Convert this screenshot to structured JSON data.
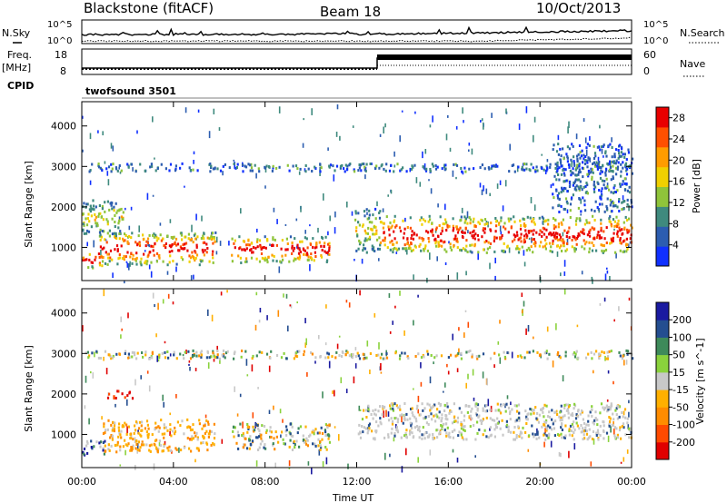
{
  "header": {
    "station": "Blackstone (fitACF)",
    "beam": "Beam 18",
    "date": "10/Oct/2013"
  },
  "noise_panel": {
    "left_label": "N.Sky",
    "right_label": "N.Search",
    "left_ticks": [
      "10^5",
      "10^0"
    ],
    "right_ticks": [
      "10^5",
      "10^0"
    ]
  },
  "freq_panel": {
    "left_label_1": "Freq.",
    "left_label_2": "[MHz]",
    "right_label": "Nave",
    "left_ticks": [
      "18",
      "8"
    ],
    "right_ticks": [
      "60",
      "0"
    ],
    "cpid_label": "CPID",
    "cpid_value": "twofsound 3501"
  },
  "x_axis": {
    "label": "Time UT",
    "ticks": [
      "00:00",
      "04:00",
      "08:00",
      "12:00",
      "16:00",
      "20:00",
      "00:00"
    ]
  },
  "chart_data": [
    {
      "type": "heatmap",
      "name": "power",
      "ylabel": "Slant Range [km]",
      "yticks": [
        1000,
        2000,
        3000,
        4000
      ],
      "ylim": [
        180,
        4600
      ],
      "xlim_hours": [
        0,
        24
      ],
      "colorbar": {
        "label": "Power [dB]",
        "ticks": [
          "28",
          "24",
          "20",
          "16",
          "12",
          "8",
          "4"
        ],
        "range": [
          0,
          30
        ],
        "colors": [
          "#1030ff",
          "#2c5db0",
          "#3f8a7e",
          "#8fc43a",
          "#f0d000",
          "#ff9c00",
          "#ff5000",
          "#e80000"
        ]
      },
      "echo_regions": [
        {
          "t": [
            0.0,
            0.9
          ],
          "r": [
            520,
            900
          ],
          "level": "high"
        },
        {
          "t": [
            0.7,
            5.8
          ],
          "r": [
            600,
            1400
          ],
          "level": "high"
        },
        {
          "t": [
            0.0,
            1.8
          ],
          "r": [
            1300,
            2200
          ],
          "level": "mid"
        },
        {
          "t": [
            6.5,
            10.8
          ],
          "r": [
            650,
            1300
          ],
          "level": "high"
        },
        {
          "t": [
            11.9,
            13.0
          ],
          "r": [
            900,
            2000
          ],
          "level": "mid"
        },
        {
          "t": [
            13.0,
            24.0
          ],
          "r": [
            900,
            1800
          ],
          "level": "high"
        },
        {
          "t": [
            0.0,
            24.0
          ],
          "r": [
            2900,
            3100
          ],
          "level": "low"
        },
        {
          "t": [
            20.5,
            24.0
          ],
          "r": [
            1900,
            3600
          ],
          "level": "low"
        }
      ]
    },
    {
      "type": "heatmap",
      "name": "velocity",
      "ylabel": "Slant Range [km]",
      "yticks": [
        1000,
        2000,
        3000,
        4000
      ],
      "ylim": [
        180,
        4600
      ],
      "xlim_hours": [
        0,
        24
      ],
      "colorbar": {
        "label": "Velocity [m s^-1]",
        "ticks": [
          "200",
          "100",
          "50",
          "15",
          "-15",
          "-50",
          "-100",
          "-200"
        ],
        "range": [
          -250,
          250
        ],
        "colors": [
          "#e00000",
          "#ff4a00",
          "#ff8c00",
          "#ffb000",
          "#c8c8c8",
          "#8ad23c",
          "#3e8a5a",
          "#244e90",
          "#1a1aa0"
        ]
      },
      "echo_regions": [
        {
          "t": [
            0.0,
            1.0
          ],
          "r": [
            500,
            900
          ],
          "level": "approach"
        },
        {
          "t": [
            0.9,
            5.8
          ],
          "r": [
            600,
            1400
          ],
          "level": "recede"
        },
        {
          "t": [
            1.0,
            2.2
          ],
          "r": [
            1900,
            2100
          ],
          "level": "strong-recede"
        },
        {
          "t": [
            6.5,
            10.8
          ],
          "r": [
            650,
            1300
          ],
          "level": "mixed"
        },
        {
          "t": [
            12.0,
            24.0
          ],
          "r": [
            900,
            1800
          ],
          "level": "ground"
        },
        {
          "t": [
            0.0,
            24.0
          ],
          "r": [
            2900,
            3100
          ],
          "level": "mixed"
        }
      ]
    }
  ]
}
